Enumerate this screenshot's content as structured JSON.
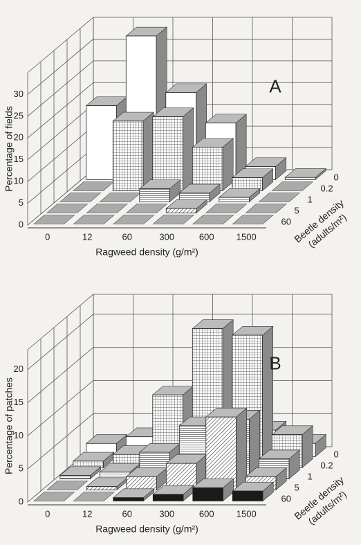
{
  "chart_data": [
    {
      "type": "bar3d",
      "label": "A",
      "z_label": "Percentage of fields",
      "x_label": "Ragweed density (g/m²)",
      "y_label": [
        "Beetle density",
        "(adults/m²)"
      ],
      "categories": [
        "0",
        "12",
        "60",
        "300",
        "600",
        "1500"
      ],
      "series": [
        {
          "name": "0",
          "pattern": "none",
          "values": [
            17,
            33,
            20,
            13,
            3,
            0.5
          ]
        },
        {
          "name": "0.2",
          "pattern": "grid",
          "values": [
            0,
            16,
            17,
            10,
            3,
            0
          ]
        },
        {
          "name": "1",
          "pattern": "horizontal",
          "values": [
            0,
            0,
            3,
            2,
            1,
            0
          ]
        },
        {
          "name": "5",
          "pattern": "diagonal",
          "values": [
            0,
            0,
            0,
            1,
            0,
            0
          ]
        },
        {
          "name": "60",
          "pattern": "solid",
          "values": [
            0,
            0,
            0,
            0,
            0,
            0
          ]
        }
      ],
      "zlim": [
        0,
        35
      ],
      "zticks": [
        0,
        5,
        10,
        15,
        20,
        25,
        30
      ]
    },
    {
      "type": "bar3d",
      "label": "B",
      "z_label": "Percentage of patches",
      "x_label": "Ragweed density (g/m²)",
      "y_label": [
        "Beetle density",
        "(adults/m²)"
      ],
      "categories": [
        "0",
        "12",
        "60",
        "300",
        "600",
        "1500"
      ],
      "series": [
        {
          "name": "0",
          "pattern": "none",
          "values": [
            2,
            3,
            9,
            6,
            4,
            2
          ]
        },
        {
          "name": "0.2",
          "pattern": "grid",
          "values": [
            1,
            2,
            11,
            21,
            20,
            5
          ]
        },
        {
          "name": "1",
          "pattern": "horizontal",
          "values": [
            0.5,
            1,
            4,
            8,
            9,
            3
          ]
        },
        {
          "name": "5",
          "pattern": "diagonal",
          "values": [
            0,
            0.5,
            2,
            4,
            11,
            2
          ]
        },
        {
          "name": "60",
          "pattern": "solid",
          "values": [
            0,
            0,
            0.5,
            1,
            2,
            1.5
          ]
        }
      ],
      "zlim": [
        0,
        23
      ],
      "zticks": [
        0,
        5,
        10,
        15,
        20
      ]
    }
  ]
}
